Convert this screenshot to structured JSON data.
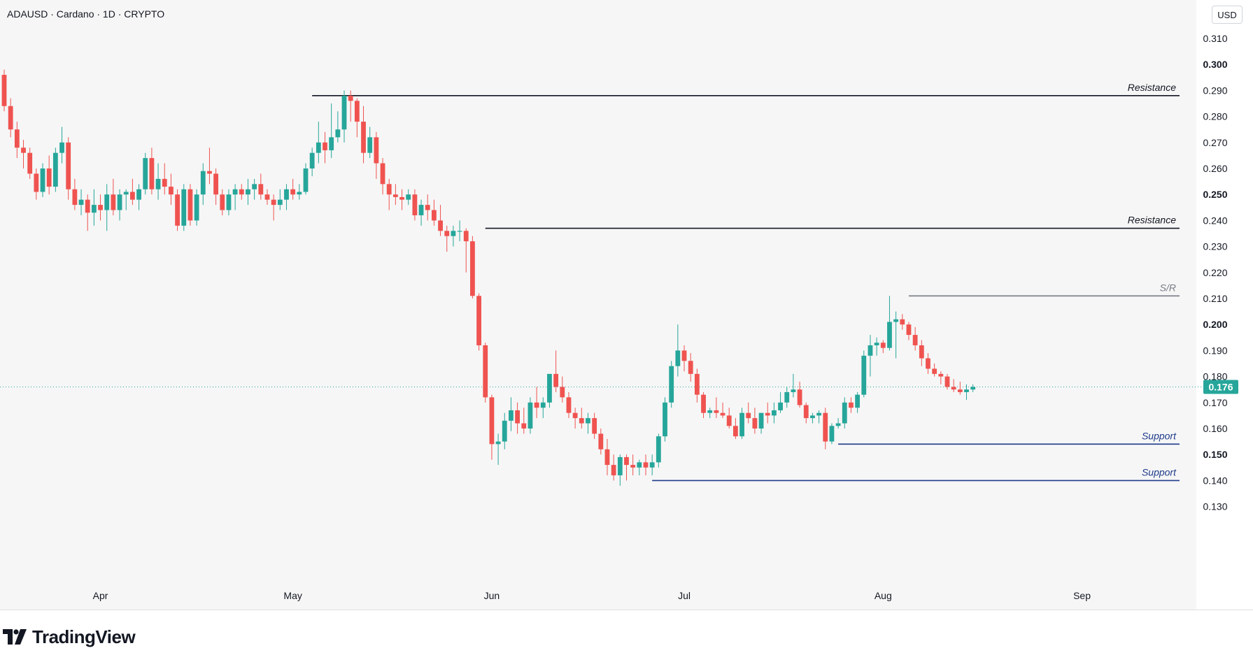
{
  "header": {
    "symbol_line": "ADAUSD · Cardano · 1D · CRYPTO",
    "currency": "USD"
  },
  "branding": {
    "logo_text": "TradingView"
  },
  "colors": {
    "up": "#26a69a",
    "down": "#ef5350",
    "support": "#1e3a8a",
    "resistance": "#131722",
    "sr": "#787b86",
    "last_price": "#26a69a"
  },
  "chart_data": {
    "type": "candlestick",
    "symbol": "ADAUSD",
    "interval": "1D",
    "ylim": [
      0.125,
      0.32
    ],
    "y_ticks": [
      "0.310",
      "0.300",
      "0.290",
      "0.280",
      "0.270",
      "0.260",
      "0.250",
      "0.240",
      "0.230",
      "0.220",
      "0.210",
      "0.200",
      "0.190",
      "0.180",
      "0.170",
      "0.160",
      "0.150",
      "0.140",
      "0.130"
    ],
    "y_tick_bold": [
      "0.300",
      "0.250",
      "0.200",
      "0.150"
    ],
    "x_ticks": [
      {
        "label": "Apr",
        "date": "2024-04-01"
      },
      {
        "label": "May",
        "date": "2024-05-01"
      },
      {
        "label": "Jun",
        "date": "2024-06-01"
      },
      {
        "label": "Jul",
        "date": "2024-07-01"
      },
      {
        "label": "Aug",
        "date": "2024-08-01"
      },
      {
        "label": "Sep",
        "date": "2024-09-01"
      }
    ],
    "start_date": "2024-03-17",
    "candles": [
      [
        0.296,
        0.298,
        0.282,
        0.284
      ],
      [
        0.284,
        0.287,
        0.272,
        0.275
      ],
      [
        0.275,
        0.278,
        0.264,
        0.268
      ],
      [
        0.268,
        0.271,
        0.26,
        0.266
      ],
      [
        0.266,
        0.268,
        0.256,
        0.258
      ],
      [
        0.258,
        0.26,
        0.248,
        0.251
      ],
      [
        0.251,
        0.262,
        0.249,
        0.26
      ],
      [
        0.26,
        0.265,
        0.25,
        0.253
      ],
      [
        0.253,
        0.268,
        0.251,
        0.266
      ],
      [
        0.266,
        0.276,
        0.262,
        0.27
      ],
      [
        0.27,
        0.272,
        0.248,
        0.252
      ],
      [
        0.252,
        0.256,
        0.244,
        0.246
      ],
      [
        0.246,
        0.252,
        0.242,
        0.248
      ],
      [
        0.248,
        0.25,
        0.236,
        0.243
      ],
      [
        0.243,
        0.252,
        0.238,
        0.246
      ],
      [
        0.246,
        0.25,
        0.24,
        0.244
      ],
      [
        0.244,
        0.254,
        0.236,
        0.25
      ],
      [
        0.25,
        0.256,
        0.242,
        0.244
      ],
      [
        0.244,
        0.252,
        0.24,
        0.25
      ],
      [
        0.25,
        0.252,
        0.244,
        0.251
      ],
      [
        0.251,
        0.256,
        0.246,
        0.248
      ],
      [
        0.248,
        0.254,
        0.244,
        0.252
      ],
      [
        0.252,
        0.266,
        0.25,
        0.264
      ],
      [
        0.264,
        0.268,
        0.25,
        0.252
      ],
      [
        0.252,
        0.262,
        0.248,
        0.256
      ],
      [
        0.256,
        0.262,
        0.25,
        0.253
      ],
      [
        0.253,
        0.258,
        0.246,
        0.25
      ],
      [
        0.25,
        0.252,
        0.236,
        0.238
      ],
      [
        0.238,
        0.254,
        0.236,
        0.252
      ],
      [
        0.252,
        0.254,
        0.238,
        0.24
      ],
      [
        0.24,
        0.252,
        0.238,
        0.25
      ],
      [
        0.25,
        0.262,
        0.246,
        0.259
      ],
      [
        0.259,
        0.268,
        0.254,
        0.258
      ],
      [
        0.258,
        0.26,
        0.246,
        0.25
      ],
      [
        0.25,
        0.252,
        0.242,
        0.244
      ],
      [
        0.244,
        0.252,
        0.242,
        0.25
      ],
      [
        0.25,
        0.254,
        0.244,
        0.252
      ],
      [
        0.252,
        0.254,
        0.248,
        0.25
      ],
      [
        0.25,
        0.256,
        0.246,
        0.252
      ],
      [
        0.252,
        0.256,
        0.248,
        0.254
      ],
      [
        0.254,
        0.258,
        0.248,
        0.25
      ],
      [
        0.25,
        0.252,
        0.246,
        0.248
      ],
      [
        0.248,
        0.25,
        0.24,
        0.246
      ],
      [
        0.246,
        0.252,
        0.244,
        0.248
      ],
      [
        0.248,
        0.254,
        0.244,
        0.252
      ],
      [
        0.252,
        0.256,
        0.248,
        0.25
      ],
      [
        0.25,
        0.254,
        0.248,
        0.251
      ],
      [
        0.251,
        0.262,
        0.25,
        0.26
      ],
      [
        0.26,
        0.268,
        0.257,
        0.266
      ],
      [
        0.266,
        0.278,
        0.262,
        0.27
      ],
      [
        0.27,
        0.274,
        0.262,
        0.267
      ],
      [
        0.267,
        0.285,
        0.264,
        0.272
      ],
      [
        0.272,
        0.282,
        0.27,
        0.275
      ],
      [
        0.275,
        0.29,
        0.27,
        0.288
      ],
      [
        0.288,
        0.29,
        0.278,
        0.286
      ],
      [
        0.286,
        0.287,
        0.272,
        0.278
      ],
      [
        0.278,
        0.284,
        0.262,
        0.266
      ],
      [
        0.266,
        0.276,
        0.264,
        0.272
      ],
      [
        0.272,
        0.274,
        0.256,
        0.262
      ],
      [
        0.262,
        0.264,
        0.25,
        0.254
      ],
      [
        0.254,
        0.256,
        0.244,
        0.25
      ],
      [
        0.25,
        0.254,
        0.246,
        0.249
      ],
      [
        0.249,
        0.252,
        0.244,
        0.248
      ],
      [
        0.248,
        0.252,
        0.246,
        0.25
      ],
      [
        0.25,
        0.252,
        0.24,
        0.242
      ],
      [
        0.242,
        0.248,
        0.238,
        0.246
      ],
      [
        0.246,
        0.25,
        0.24,
        0.244
      ],
      [
        0.244,
        0.248,
        0.238,
        0.24
      ],
      [
        0.24,
        0.246,
        0.234,
        0.236
      ],
      [
        0.236,
        0.238,
        0.228,
        0.234
      ],
      [
        0.234,
        0.238,
        0.23,
        0.236
      ],
      [
        0.236,
        0.24,
        0.232,
        0.236
      ],
      [
        0.236,
        0.237,
        0.22,
        0.232
      ],
      [
        0.232,
        0.234,
        0.21,
        0.211
      ],
      [
        0.211,
        0.212,
        0.19,
        0.192
      ],
      [
        0.192,
        0.193,
        0.17,
        0.172
      ],
      [
        0.172,
        0.173,
        0.148,
        0.154
      ],
      [
        0.154,
        0.158,
        0.146,
        0.155
      ],
      [
        0.155,
        0.166,
        0.152,
        0.163
      ],
      [
        0.163,
        0.172,
        0.159,
        0.167
      ],
      [
        0.167,
        0.17,
        0.158,
        0.162
      ],
      [
        0.162,
        0.168,
        0.158,
        0.16
      ],
      [
        0.16,
        0.172,
        0.158,
        0.17
      ],
      [
        0.17,
        0.176,
        0.164,
        0.168
      ],
      [
        0.168,
        0.172,
        0.164,
        0.17
      ],
      [
        0.17,
        0.181,
        0.168,
        0.181
      ],
      [
        0.181,
        0.19,
        0.174,
        0.176
      ],
      [
        0.176,
        0.18,
        0.17,
        0.172
      ],
      [
        0.172,
        0.174,
        0.164,
        0.166
      ],
      [
        0.166,
        0.168,
        0.16,
        0.164
      ],
      [
        0.164,
        0.168,
        0.16,
        0.162
      ],
      [
        0.162,
        0.166,
        0.158,
        0.164
      ],
      [
        0.164,
        0.166,
        0.156,
        0.158
      ],
      [
        0.158,
        0.16,
        0.15,
        0.152
      ],
      [
        0.152,
        0.156,
        0.142,
        0.146
      ],
      [
        0.146,
        0.15,
        0.14,
        0.142
      ],
      [
        0.142,
        0.15,
        0.138,
        0.149
      ],
      [
        0.149,
        0.15,
        0.14,
        0.146
      ],
      [
        0.146,
        0.15,
        0.142,
        0.145
      ],
      [
        0.145,
        0.148,
        0.142,
        0.147
      ],
      [
        0.147,
        0.15,
        0.142,
        0.145
      ],
      [
        0.145,
        0.15,
        0.142,
        0.147
      ],
      [
        0.147,
        0.158,
        0.145,
        0.157
      ],
      [
        0.157,
        0.172,
        0.155,
        0.17
      ],
      [
        0.17,
        0.186,
        0.168,
        0.184
      ],
      [
        0.184,
        0.2,
        0.18,
        0.19
      ],
      [
        0.19,
        0.192,
        0.182,
        0.186
      ],
      [
        0.186,
        0.189,
        0.178,
        0.181
      ],
      [
        0.181,
        0.183,
        0.17,
        0.173
      ],
      [
        0.173,
        0.174,
        0.164,
        0.166
      ],
      [
        0.166,
        0.168,
        0.164,
        0.167
      ],
      [
        0.167,
        0.172,
        0.164,
        0.166
      ],
      [
        0.166,
        0.17,
        0.164,
        0.165
      ],
      [
        0.165,
        0.168,
        0.16,
        0.161
      ],
      [
        0.161,
        0.164,
        0.156,
        0.157
      ],
      [
        0.157,
        0.168,
        0.156,
        0.166
      ],
      [
        0.166,
        0.17,
        0.162,
        0.164
      ],
      [
        0.164,
        0.168,
        0.158,
        0.16
      ],
      [
        0.16,
        0.166,
        0.158,
        0.166
      ],
      [
        0.166,
        0.17,
        0.162,
        0.165
      ],
      [
        0.165,
        0.17,
        0.162,
        0.167
      ],
      [
        0.167,
        0.174,
        0.166,
        0.17
      ],
      [
        0.17,
        0.176,
        0.168,
        0.174
      ],
      [
        0.174,
        0.181,
        0.172,
        0.175
      ],
      [
        0.175,
        0.178,
        0.168,
        0.169
      ],
      [
        0.169,
        0.17,
        0.162,
        0.164
      ],
      [
        0.164,
        0.166,
        0.162,
        0.165
      ],
      [
        0.165,
        0.167,
        0.162,
        0.166
      ],
      [
        0.166,
        0.168,
        0.152,
        0.155
      ],
      [
        0.155,
        0.162,
        0.154,
        0.161
      ],
      [
        0.161,
        0.164,
        0.16,
        0.162
      ],
      [
        0.162,
        0.172,
        0.16,
        0.17
      ],
      [
        0.17,
        0.172,
        0.166,
        0.168
      ],
      [
        0.168,
        0.174,
        0.166,
        0.173
      ],
      [
        0.173,
        0.19,
        0.172,
        0.188
      ],
      [
        0.188,
        0.196,
        0.18,
        0.192
      ],
      [
        0.192,
        0.195,
        0.188,
        0.193
      ],
      [
        0.193,
        0.194,
        0.189,
        0.191
      ],
      [
        0.191,
        0.211,
        0.19,
        0.201
      ],
      [
        0.201,
        0.205,
        0.187,
        0.202
      ],
      [
        0.202,
        0.204,
        0.198,
        0.2
      ],
      [
        0.2,
        0.201,
        0.194,
        0.196
      ],
      [
        0.196,
        0.199,
        0.19,
        0.192
      ],
      [
        0.192,
        0.194,
        0.184,
        0.187
      ],
      [
        0.187,
        0.189,
        0.181,
        0.183
      ],
      [
        0.183,
        0.185,
        0.18,
        0.181
      ],
      [
        0.181,
        0.182,
        0.177,
        0.18
      ],
      [
        0.18,
        0.181,
        0.175,
        0.176
      ],
      [
        0.176,
        0.179,
        0.174,
        0.175
      ],
      [
        0.175,
        0.178,
        0.173,
        0.174
      ],
      [
        0.174,
        0.177,
        0.171,
        0.175
      ],
      [
        0.175,
        0.177,
        0.174,
        0.176
      ]
    ],
    "last_price": "0.176",
    "last_price_value": 0.176,
    "levels": [
      {
        "label": "Resistance",
        "price": 0.288,
        "start_date": "2024-05-04",
        "kind": "resistance"
      },
      {
        "label": "Resistance",
        "price": 0.237,
        "start_date": "2024-05-31",
        "kind": "resistance"
      },
      {
        "label": "S/R",
        "price": 0.211,
        "start_date": "2024-08-05",
        "kind": "sr"
      },
      {
        "label": "Support",
        "price": 0.154,
        "start_date": "2024-07-25",
        "kind": "support"
      },
      {
        "label": "Support",
        "price": 0.14,
        "start_date": "2024-06-26",
        "kind": "support"
      }
    ]
  }
}
